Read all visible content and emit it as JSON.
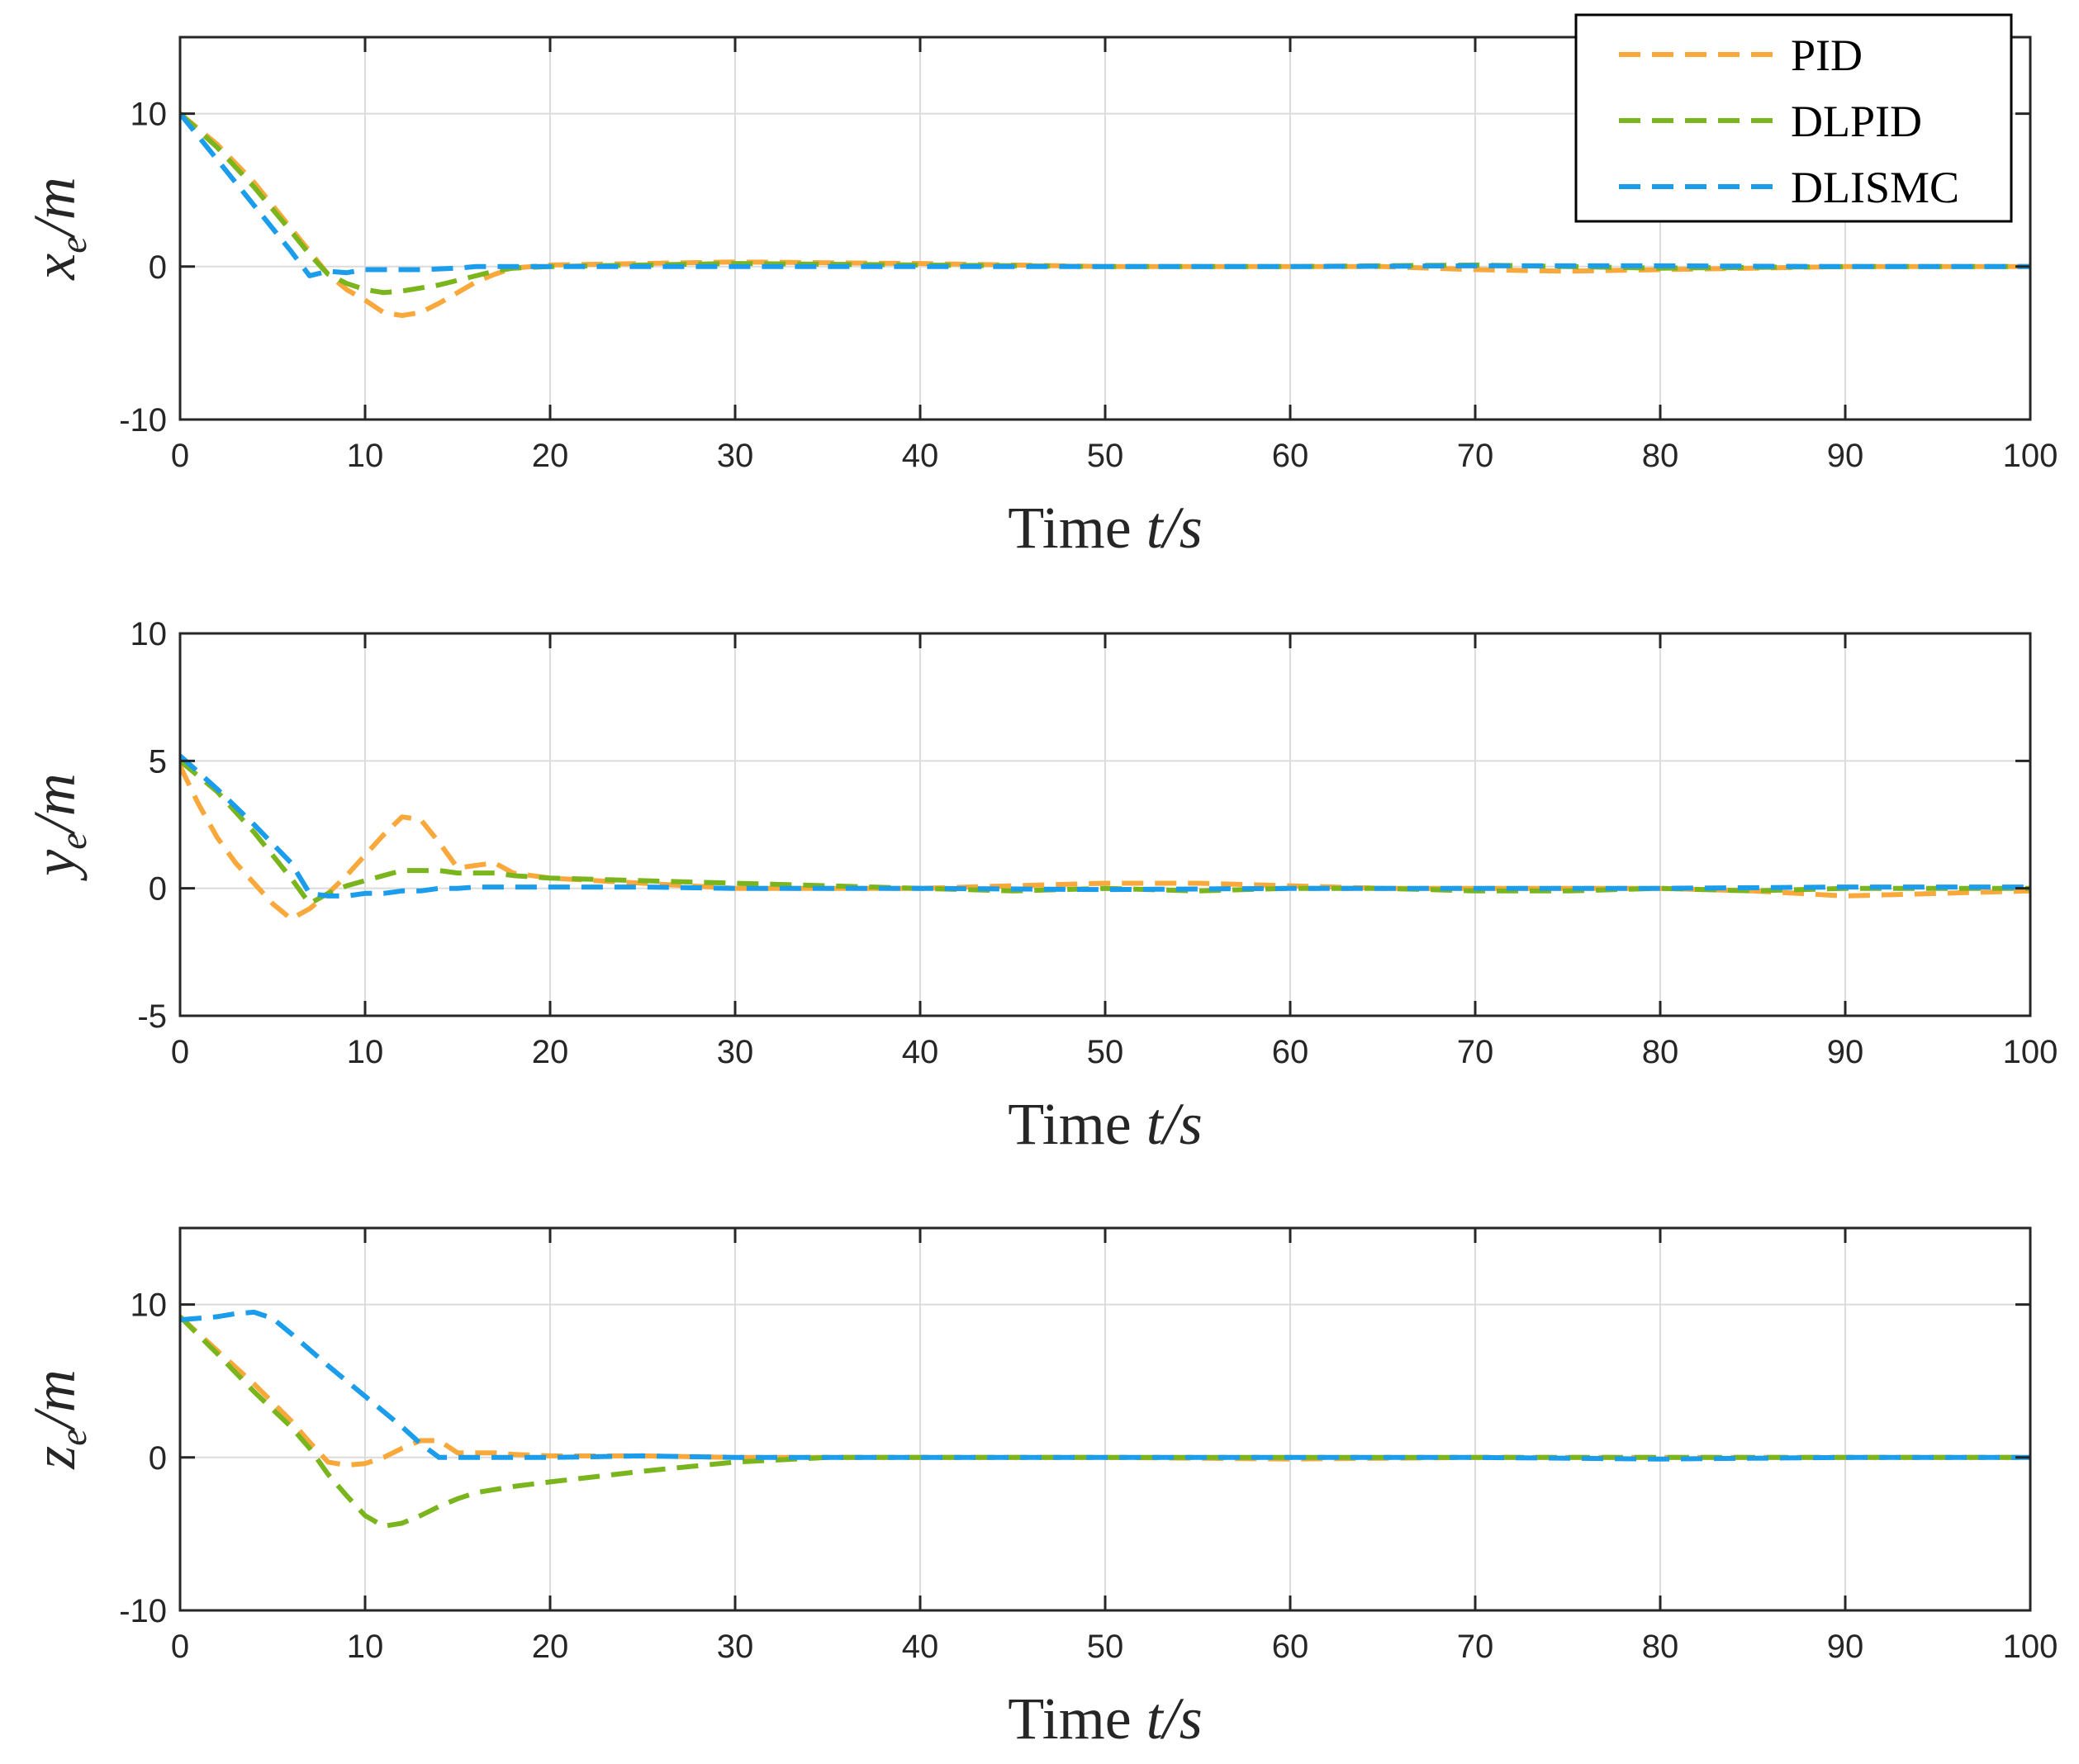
{
  "chart_data": [
    {
      "type": "line",
      "ylabel": "x_e/m",
      "ylabel_main": "x",
      "ylabel_sub": "e",
      "ylabel_tail": "/m",
      "xlabel": "Time t/s",
      "xlabel_main": "Time ",
      "xlabel_var": "t/s",
      "xlim": [
        0,
        100
      ],
      "ylim": [
        -10,
        15
      ],
      "xticks": [
        "0",
        "10",
        "20",
        "30",
        "40",
        "50",
        "60",
        "70",
        "80",
        "90",
        "100"
      ],
      "yticks": [
        "-10",
        "0",
        "10"
      ],
      "ytick_values": [
        -10,
        0,
        10
      ],
      "grid": true,
      "legend": "top-right",
      "series": [
        {
          "name": "PID",
          "color": "#F9A93B",
          "x": [
            0,
            2,
            4,
            6,
            7,
            8,
            9,
            10,
            11,
            12,
            13,
            14,
            15,
            16,
            17,
            18,
            20,
            25,
            30,
            35,
            40,
            45,
            50,
            55,
            60,
            65,
            70,
            75,
            80,
            85,
            90,
            95,
            100
          ],
          "y": [
            10,
            8,
            5.5,
            2.5,
            1,
            -0.5,
            -1.5,
            -2.2,
            -3,
            -3.2,
            -3,
            -2.4,
            -1.7,
            -1,
            -0.5,
            -0.1,
            0.1,
            0.2,
            0.3,
            0.25,
            0.2,
            0.1,
            0,
            0,
            0,
            0,
            -0.2,
            -0.3,
            -0.2,
            -0.1,
            0,
            0,
            0
          ]
        },
        {
          "name": "DLPID",
          "color": "#7AB51D",
          "x": [
            0,
            2,
            4,
            6,
            7,
            8,
            9,
            10,
            11,
            12,
            13,
            14,
            15,
            16,
            17,
            18,
            20,
            25,
            30,
            40,
            50,
            60,
            70,
            80,
            90,
            100
          ],
          "y": [
            10,
            7.8,
            5.2,
            2.3,
            0.8,
            -0.5,
            -1.1,
            -1.5,
            -1.7,
            -1.6,
            -1.4,
            -1.2,
            -0.9,
            -0.6,
            -0.3,
            -0.1,
            0,
            0.1,
            0.2,
            0.1,
            0,
            0,
            0.1,
            -0.1,
            0,
            0
          ]
        },
        {
          "name": "DLISMC",
          "color": "#1B9DEB",
          "x": [
            0,
            2,
            4,
            6,
            7,
            8,
            9,
            10,
            11,
            12,
            13,
            14,
            15,
            16,
            18,
            20,
            30,
            40,
            50,
            60,
            70,
            80,
            90,
            100
          ],
          "y": [
            10,
            7,
            4,
            1,
            -0.6,
            -0.3,
            -0.4,
            -0.2,
            -0.2,
            -0.2,
            -0.2,
            -0.15,
            -0.1,
            0,
            0,
            0,
            0,
            0,
            0,
            0,
            0.05,
            0.05,
            0,
            0
          ]
        }
      ]
    },
    {
      "type": "line",
      "ylabel": "y_e/m",
      "ylabel_main": "y",
      "ylabel_sub": "e",
      "ylabel_tail": "/m",
      "xlabel": "Time t/s",
      "xlabel_main": "Time ",
      "xlabel_var": "t/s",
      "xlim": [
        0,
        100
      ],
      "ylim": [
        -5,
        10
      ],
      "xticks": [
        "0",
        "10",
        "20",
        "30",
        "40",
        "50",
        "60",
        "70",
        "80",
        "90",
        "100"
      ],
      "yticks": [
        "-5",
        "0",
        "5",
        "10"
      ],
      "ytick_values": [
        -5,
        0,
        5,
        10
      ],
      "grid": true,
      "series": [
        {
          "name": "PID",
          "color": "#F9A93B",
          "x": [
            0,
            1,
            2,
            3,
            4,
            5,
            6,
            7,
            8,
            9,
            10,
            11,
            12,
            13,
            14,
            15,
            16,
            17,
            18,
            20,
            25,
            30,
            35,
            40,
            45,
            50,
            55,
            60,
            65,
            70,
            75,
            80,
            85,
            90,
            95,
            100
          ],
          "y": [
            4.8,
            3.3,
            2,
            1,
            0.2,
            -0.6,
            -1.2,
            -0.8,
            -0.2,
            0.5,
            1.3,
            2.1,
            2.8,
            2.7,
            1.8,
            0.8,
            0.9,
            1,
            0.6,
            0.4,
            0.2,
            0,
            0,
            0,
            0.1,
            0.2,
            0.2,
            0.1,
            0,
            0,
            0,
            0,
            -0.1,
            -0.3,
            -0.2,
            -0.1
          ]
        },
        {
          "name": "DLPID",
          "color": "#7AB51D",
          "x": [
            0,
            2,
            4,
            6,
            7,
            8,
            9,
            10,
            11,
            12,
            13,
            14,
            15,
            16,
            17,
            18,
            20,
            25,
            30,
            35,
            40,
            45,
            50,
            55,
            60,
            65,
            70,
            75,
            80,
            85,
            90,
            95,
            100
          ],
          "y": [
            5,
            3.8,
            2.2,
            0.4,
            -0.6,
            -0.2,
            0.1,
            0.3,
            0.5,
            0.7,
            0.7,
            0.7,
            0.6,
            0.6,
            0.6,
            0.5,
            0.4,
            0.3,
            0.2,
            0.1,
            0,
            -0.1,
            0,
            -0.1,
            0,
            0,
            -0.1,
            -0.1,
            0,
            -0.1,
            0,
            0,
            0
          ]
        },
        {
          "name": "DLISMC",
          "color": "#1B9DEB",
          "x": [
            0,
            2,
            4,
            6,
            7,
            8,
            9,
            10,
            11,
            12,
            13,
            14,
            15,
            16,
            18,
            20,
            25,
            30,
            40,
            50,
            60,
            70,
            80,
            90,
            100
          ],
          "y": [
            5.2,
            3.9,
            2.5,
            1,
            -0.2,
            -0.3,
            -0.3,
            -0.2,
            -0.2,
            -0.1,
            -0.1,
            0,
            0,
            0.05,
            0.05,
            0.05,
            0.05,
            0,
            0,
            -0.05,
            0,
            0,
            0,
            0.05,
            0.05
          ]
        }
      ]
    },
    {
      "type": "line",
      "ylabel": "z_e/m",
      "ylabel_main": "z",
      "ylabel_sub": "e",
      "ylabel_tail": "/m",
      "xlabel": "Time t/s",
      "xlabel_main": "Time ",
      "xlabel_var": "t/s",
      "xlim": [
        0,
        100
      ],
      "ylim": [
        -10,
        15
      ],
      "xticks": [
        "0",
        "10",
        "20",
        "30",
        "40",
        "50",
        "60",
        "70",
        "80",
        "90",
        "100"
      ],
      "yticks": [
        "-10",
        "0",
        "10"
      ],
      "ytick_values": [
        -10,
        0,
        10
      ],
      "grid": true,
      "series": [
        {
          "name": "PID",
          "color": "#F9A93B",
          "x": [
            0,
            2,
            4,
            6,
            7,
            8,
            9,
            10,
            11,
            12,
            13,
            14,
            15,
            16,
            17,
            18,
            20,
            25,
            30,
            40,
            50,
            60,
            70,
            80,
            90,
            100
          ],
          "y": [
            9.2,
            7,
            4.8,
            2.4,
            1,
            -0.3,
            -0.5,
            -0.4,
            0,
            0.6,
            1.1,
            1.1,
            0.3,
            0.3,
            0.3,
            0.2,
            0.1,
            0.1,
            0,
            0,
            0,
            -0.1,
            0,
            0,
            0,
            0
          ]
        },
        {
          "name": "DLPID",
          "color": "#7AB51D",
          "x": [
            0,
            2,
            4,
            6,
            7,
            8,
            9,
            10,
            11,
            12,
            13,
            14,
            15,
            16,
            18,
            20,
            25,
            30,
            35,
            40,
            50,
            60,
            70,
            80,
            90,
            100
          ],
          "y": [
            9.2,
            6.8,
            4.3,
            2,
            0.6,
            -1.1,
            -2.5,
            -3.8,
            -4.5,
            -4.3,
            -3.8,
            -3.2,
            -2.7,
            -2.3,
            -1.9,
            -1.6,
            -0.9,
            -0.3,
            0,
            0,
            0,
            0,
            0,
            0,
            0,
            0
          ]
        },
        {
          "name": "DLISMC",
          "color": "#1B9DEB",
          "x": [
            0,
            2,
            3,
            4,
            5,
            6,
            8,
            10,
            12,
            13,
            14,
            15,
            16,
            20,
            25,
            30,
            40,
            50,
            60,
            70,
            80,
            90,
            100
          ],
          "y": [
            9,
            9.2,
            9.4,
            9.5,
            9.1,
            8.1,
            6,
            4,
            2,
            0.9,
            0,
            0,
            0,
            0,
            0.1,
            0,
            0,
            0,
            0,
            0,
            -0.1,
            0,
            0
          ]
        }
      ]
    }
  ],
  "legend": {
    "entries": [
      "PID",
      "DLPID",
      "DLISMC"
    ]
  }
}
